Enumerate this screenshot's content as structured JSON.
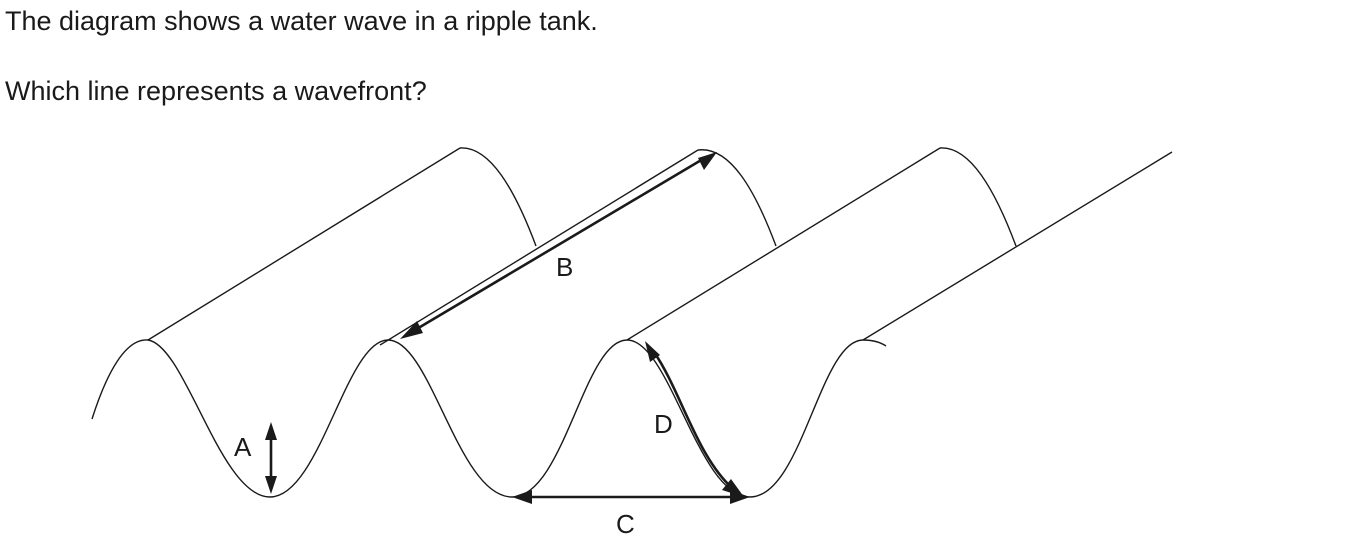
{
  "question": {
    "line1": "The diagram shows a water wave in a ripple tank.",
    "line2": "Which line represents a wavefront?"
  },
  "diagram": {
    "labels": {
      "A": "A",
      "B": "B",
      "C": "C",
      "D": "D"
    }
  }
}
